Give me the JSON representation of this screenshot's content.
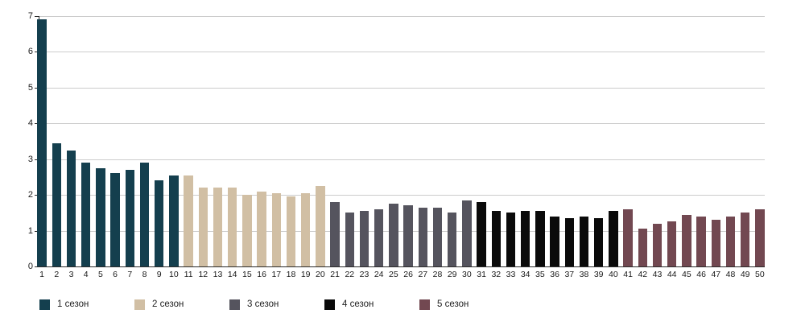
{
  "chart_data": {
    "type": "bar",
    "title": "",
    "xlabel": "",
    "ylabel": "",
    "categories": [
      "1",
      "2",
      "3",
      "4",
      "5",
      "6",
      "7",
      "8",
      "9",
      "10",
      "11",
      "12",
      "13",
      "14",
      "15",
      "16",
      "17",
      "18",
      "19",
      "20",
      "21",
      "22",
      "23",
      "24",
      "25",
      "26",
      "27",
      "28",
      "29",
      "30",
      "31",
      "32",
      "33",
      "34",
      "35",
      "36",
      "37",
      "38",
      "39",
      "40",
      "41",
      "42",
      "43",
      "44",
      "45",
      "46",
      "47",
      "48",
      "49",
      "50"
    ],
    "series": [
      {
        "name": "1 сезон",
        "color": "#143f4e",
        "values": [
          6.9,
          3.45,
          3.25,
          2.9,
          2.75,
          2.6,
          2.7,
          2.9,
          2.4,
          2.55
        ]
      },
      {
        "name": "2 сезон",
        "color": "#d1bfa4",
        "values": [
          2.55,
          2.2,
          2.2,
          2.2,
          2.0,
          2.1,
          2.05,
          1.95,
          2.05,
          2.25
        ]
      },
      {
        "name": "3 сезон",
        "color": "#55545e",
        "values": [
          1.8,
          1.5,
          1.55,
          1.6,
          1.75,
          1.7,
          1.65,
          1.65,
          1.5,
          1.85
        ]
      },
      {
        "name": "4 сезон",
        "color": "#0a0a0a",
        "values": [
          1.8,
          1.55,
          1.5,
          1.55,
          1.55,
          1.4,
          1.35,
          1.4,
          1.35,
          1.55
        ]
      },
      {
        "name": "5 сезон",
        "color": "#724851",
        "values": [
          1.6,
          1.05,
          1.2,
          1.25,
          1.45,
          1.4,
          1.3,
          1.4,
          1.5,
          1.6
        ]
      }
    ],
    "ylim": [
      0,
      7
    ],
    "yticks": [
      0,
      1,
      2,
      3,
      4,
      5,
      6,
      7
    ],
    "grid": true,
    "legend_position": "bottom"
  },
  "colors": {
    "background": "#ffffff",
    "gridline": "#cccccc",
    "axis": "#2b2b2b",
    "tick_text": "#1a1a1a",
    "legend_text": "#222222"
  }
}
